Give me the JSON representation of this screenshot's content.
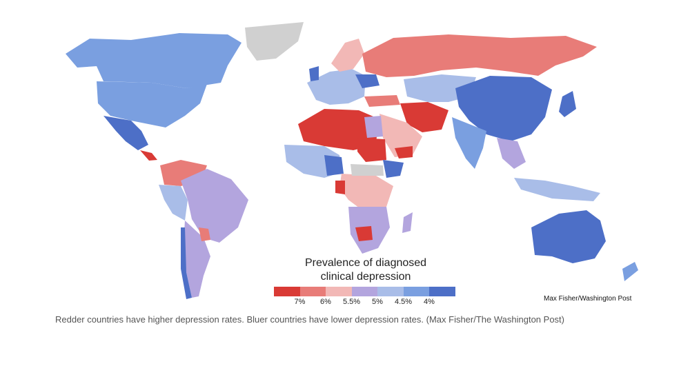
{
  "legend": {
    "title_line1": "Prevalence of diagnosed",
    "title_line2": "clinical depression",
    "bins": [
      {
        "color": "#d93a35"
      },
      {
        "color": "#e87c78"
      },
      {
        "color": "#f2b8b6"
      },
      {
        "color": "#b3a5de"
      },
      {
        "color": "#a9bde8"
      },
      {
        "color": "#7a9fe0"
      },
      {
        "color": "#4d6fc7"
      }
    ],
    "ticks": [
      "7%",
      "6%",
      "5.5%",
      "5%",
      "4.5%",
      "4%"
    ]
  },
  "no_data_color": "#d0d0d0",
  "map_credit": "Max Fisher/Washington Post",
  "caption": "Redder countries have higher depression rates. Bluer countries have lower depression rates. (Max Fisher/The Washington Post)"
}
